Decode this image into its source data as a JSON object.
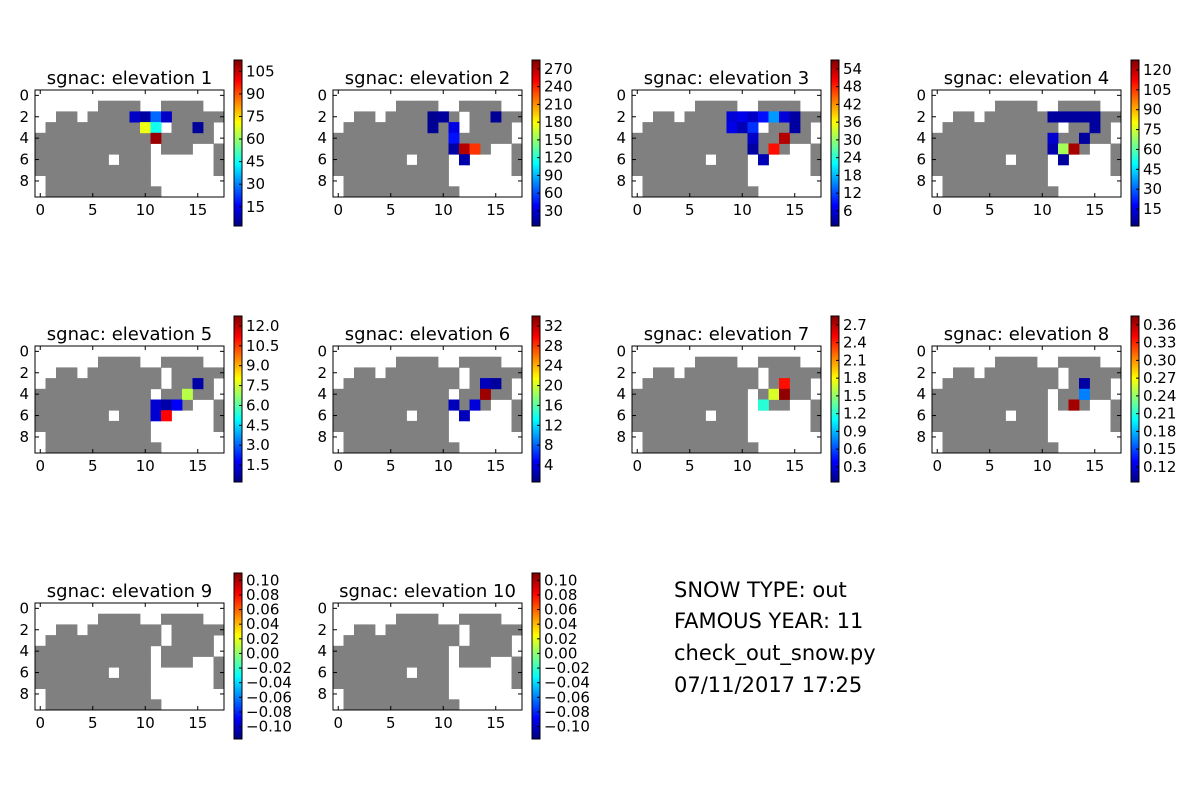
{
  "colors": {
    "land": "#808080",
    "ocean": "#ffffff",
    "jet": [
      "#00007f",
      "#0000ff",
      "#007fff",
      "#00ffff",
      "#7fff7f",
      "#ffff00",
      "#ff7f00",
      "#ff0000",
      "#7f0000"
    ]
  },
  "info_text": {
    "line1": "SNOW TYPE: out",
    "line2": "FAMOUS YEAR: 11",
    "line3": "check_out_snow.py",
    "line4": "07/11/2017 17:25"
  },
  "chart_data": {
    "type": "heatmap",
    "grid": {
      "rows": 10,
      "cols": 18,
      "xticks": [
        0,
        5,
        10,
        15
      ],
      "yticks": [
        0,
        2,
        4,
        6,
        8
      ],
      "xlim": [
        -0.5,
        17.5
      ],
      "ylim": [
        9.5,
        -0.5
      ],
      "land_rows": [
        "....................",
        "......."
      ]
    },
    "land_mask": [
      "..................",
      "......####..####..",
      "..##.#######.#####",
      ".###########.####.",
      "###########.#####.",
      "###########.###..#",
      "#######.###......#",
      "###########......#",
      ".##########.......",
      ".###########......"
    ],
    "panels": [
      {
        "title": "sgnac: elevation 1",
        "colorbar_ticks": [
          "105",
          "90",
          "75",
          "60",
          "45",
          "30",
          "15"
        ],
        "vmin": 0,
        "vmax": 115,
        "cells": [
          {
            "row": 2,
            "col": 9,
            "value": 8
          },
          {
            "row": 2,
            "col": 10,
            "value": 4
          },
          {
            "row": 2,
            "col": 11,
            "value": 26
          },
          {
            "row": 2,
            "col": 12,
            "value": 8
          },
          {
            "row": 3,
            "col": 10,
            "value": 70
          },
          {
            "row": 3,
            "col": 11,
            "value": 45
          },
          {
            "row": 3,
            "col": 15,
            "value": 3
          },
          {
            "row": 4,
            "col": 11,
            "value": 112
          }
        ]
      },
      {
        "title": "sgnac: elevation 2",
        "colorbar_ticks": [
          "270",
          "240",
          "210",
          "180",
          "150",
          "120",
          "90",
          "60",
          "30"
        ],
        "vmin": 0,
        "vmax": 285,
        "cells": [
          {
            "row": 2,
            "col": 9,
            "value": 5
          },
          {
            "row": 2,
            "col": 10,
            "value": 8
          },
          {
            "row": 2,
            "col": 15,
            "value": 6
          },
          {
            "row": 3,
            "col": 9,
            "value": 6
          },
          {
            "row": 3,
            "col": 11,
            "value": 28
          },
          {
            "row": 4,
            "col": 11,
            "value": 40
          },
          {
            "row": 5,
            "col": 11,
            "value": 10
          },
          {
            "row": 5,
            "col": 12,
            "value": 270
          },
          {
            "row": 5,
            "col": 13,
            "value": 235
          },
          {
            "row": 6,
            "col": 12,
            "value": 12
          }
        ]
      },
      {
        "title": "sgnac: elevation 3",
        "colorbar_ticks": [
          "54",
          "48",
          "42",
          "36",
          "30",
          "24",
          "18",
          "12",
          "6"
        ],
        "vmin": 0,
        "vmax": 58,
        "cells": [
          {
            "row": 2,
            "col": 9,
            "value": 5
          },
          {
            "row": 2,
            "col": 10,
            "value": 6
          },
          {
            "row": 2,
            "col": 11,
            "value": 4
          },
          {
            "row": 2,
            "col": 12,
            "value": 8
          },
          {
            "row": 2,
            "col": 13,
            "value": 16
          },
          {
            "row": 2,
            "col": 14,
            "value": 5
          },
          {
            "row": 2,
            "col": 15,
            "value": 2
          },
          {
            "row": 3,
            "col": 9,
            "value": 6
          },
          {
            "row": 3,
            "col": 10,
            "value": 3
          },
          {
            "row": 3,
            "col": 11,
            "value": 10
          },
          {
            "row": 3,
            "col": 15,
            "value": 2
          },
          {
            "row": 4,
            "col": 11,
            "value": 4
          },
          {
            "row": 4,
            "col": 14,
            "value": 55
          },
          {
            "row": 5,
            "col": 11,
            "value": 2
          },
          {
            "row": 5,
            "col": 13,
            "value": 50
          },
          {
            "row": 6,
            "col": 12,
            "value": 3
          }
        ]
      },
      {
        "title": "sgnac: elevation 4",
        "colorbar_ticks": [
          "120",
          "105",
          "90",
          "75",
          "60",
          "45",
          "30",
          "15"
        ],
        "vmin": 0,
        "vmax": 130,
        "cells": [
          {
            "row": 2,
            "col": 11,
            "value": 4
          },
          {
            "row": 2,
            "col": 12,
            "value": 4
          },
          {
            "row": 2,
            "col": 13,
            "value": 4
          },
          {
            "row": 2,
            "col": 14,
            "value": 4
          },
          {
            "row": 2,
            "col": 15,
            "value": 4
          },
          {
            "row": 3,
            "col": 15,
            "value": 4
          },
          {
            "row": 4,
            "col": 11,
            "value": 10
          },
          {
            "row": 4,
            "col": 14,
            "value": 4
          },
          {
            "row": 5,
            "col": 11,
            "value": 6
          },
          {
            "row": 5,
            "col": 12,
            "value": 70
          },
          {
            "row": 5,
            "col": 13,
            "value": 125
          },
          {
            "row": 6,
            "col": 12,
            "value": 4
          }
        ]
      },
      {
        "title": "sgnac: elevation 5",
        "colorbar_ticks": [
          "12.0",
          "10.5",
          "9.0",
          "7.5",
          "6.0",
          "4.5",
          "3.0",
          "1.5"
        ],
        "vmin": 0,
        "vmax": 12.6,
        "cells": [
          {
            "row": 3,
            "col": 15,
            "value": 0.5
          },
          {
            "row": 4,
            "col": 14,
            "value": 7
          },
          {
            "row": 5,
            "col": 11,
            "value": 1
          },
          {
            "row": 5,
            "col": 12,
            "value": 0.5
          },
          {
            "row": 5,
            "col": 13,
            "value": 1.5
          },
          {
            "row": 6,
            "col": 11,
            "value": 1
          },
          {
            "row": 6,
            "col": 12,
            "value": 11
          }
        ]
      },
      {
        "title": "sgnac: elevation 6",
        "colorbar_ticks": [
          "32",
          "28",
          "24",
          "20",
          "16",
          "12",
          "8",
          "4"
        ],
        "vmin": 0,
        "vmax": 34,
        "cells": [
          {
            "row": 3,
            "col": 14,
            "value": 2
          },
          {
            "row": 3,
            "col": 15,
            "value": 1
          },
          {
            "row": 4,
            "col": 14,
            "value": 33
          },
          {
            "row": 5,
            "col": 11,
            "value": 2
          },
          {
            "row": 5,
            "col": 13,
            "value": 3
          },
          {
            "row": 6,
            "col": 12,
            "value": 2
          }
        ]
      },
      {
        "title": "sgnac: elevation 7",
        "colorbar_ticks": [
          "2.7",
          "2.4",
          "2.1",
          "1.8",
          "1.5",
          "1.2",
          "0.9",
          "0.6",
          "0.3"
        ],
        "vmin": 0,
        "vmax": 2.9,
        "cells": [
          {
            "row": 3,
            "col": 14,
            "value": 2.5
          },
          {
            "row": 4,
            "col": 13,
            "value": 1.7
          },
          {
            "row": 4,
            "col": 14,
            "value": 2.85
          },
          {
            "row": 5,
            "col": 12,
            "value": 1.2
          }
        ]
      },
      {
        "title": "sgnac: elevation 8",
        "colorbar_ticks": [
          "0.36",
          "0.33",
          "0.30",
          "0.27",
          "0.24",
          "0.21",
          "0.18",
          "0.15",
          "0.12"
        ],
        "vmin": 0.1,
        "vmax": 0.38,
        "cells": [
          {
            "row": 3,
            "col": 14,
            "value": 0.11
          },
          {
            "row": 4,
            "col": 14,
            "value": 0.17
          },
          {
            "row": 5,
            "col": 13,
            "value": 0.37
          }
        ]
      },
      {
        "title": "sgnac: elevation 9",
        "colorbar_ticks": [
          "0.10",
          "0.08",
          "0.06",
          "0.04",
          "0.02",
          "0.00",
          "−0.02",
          "−0.04",
          "−0.06",
          "−0.08",
          "−0.10"
        ],
        "vmin": -0.1,
        "vmax": 0.1,
        "cells": []
      },
      {
        "title": "sgnac: elevation 10",
        "colorbar_ticks": [
          "0.10",
          "0.08",
          "0.06",
          "0.04",
          "0.02",
          "0.00",
          "−0.02",
          "−0.04",
          "−0.06",
          "−0.08",
          "−0.10"
        ],
        "vmin": -0.1,
        "vmax": 0.1,
        "cells": []
      }
    ]
  }
}
